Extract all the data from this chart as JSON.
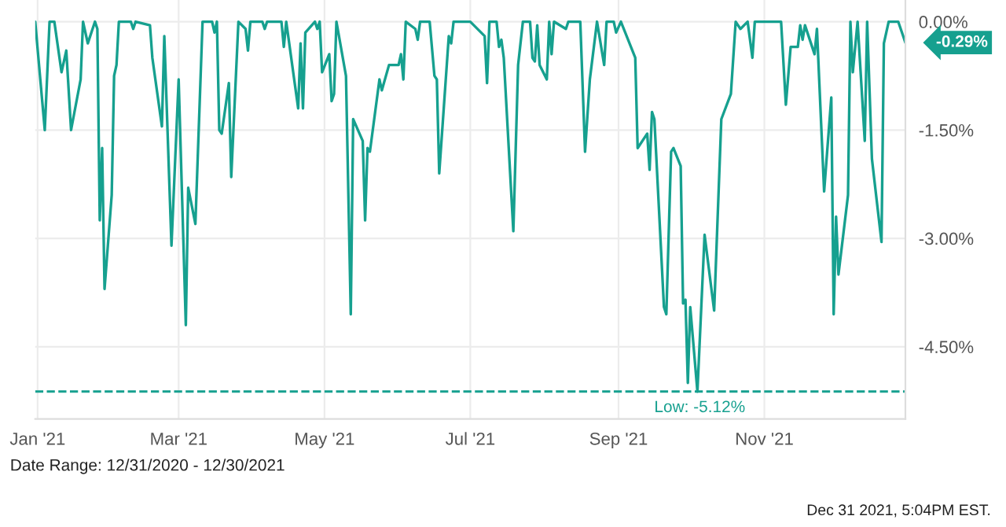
{
  "chart_data": {
    "type": "line",
    "x": [
      "2020-12-31",
      "2021-01-04",
      "2021-01-06",
      "2021-01-08",
      "2021-01-11",
      "2021-01-13",
      "2021-01-15",
      "2021-01-19",
      "2021-01-20",
      "2021-01-22",
      "2021-01-25",
      "2021-01-26",
      "2021-01-27",
      "2021-01-28",
      "2021-01-29",
      "2021-02-01",
      "2021-02-02",
      "2021-02-03",
      "2021-02-04",
      "2021-02-09",
      "2021-02-10",
      "2021-02-11",
      "2021-02-17",
      "2021-02-18",
      "2021-02-22",
      "2021-02-23",
      "2021-02-26",
      "2021-03-01",
      "2021-03-04",
      "2021-03-05",
      "2021-03-08",
      "2021-03-11",
      "2021-03-15",
      "2021-03-16",
      "2021-03-17",
      "2021-03-18",
      "2021-03-19",
      "2021-03-22",
      "2021-03-23",
      "2021-03-26",
      "2021-03-29",
      "2021-03-30",
      "2021-03-31",
      "2021-04-05",
      "2021-04-06",
      "2021-04-07",
      "2021-04-13",
      "2021-04-14",
      "2021-04-15",
      "2021-04-20",
      "2021-04-21",
      "2021-04-22",
      "2021-04-23",
      "2021-04-27",
      "2021-04-28",
      "2021-04-29",
      "2021-04-30",
      "2021-05-03",
      "2021-05-04",
      "2021-05-05",
      "2021-05-06",
      "2021-05-10",
      "2021-05-12",
      "2021-05-13",
      "2021-05-17",
      "2021-05-18",
      "2021-05-19",
      "2021-05-20",
      "2021-05-24",
      "2021-05-25",
      "2021-05-28",
      "2021-06-01",
      "2021-06-02",
      "2021-06-03",
      "2021-06-04",
      "2021-06-08",
      "2021-06-09",
      "2021-06-10",
      "2021-06-14",
      "2021-06-16",
      "2021-06-17",
      "2021-06-18",
      "2021-06-22",
      "2021-06-23",
      "2021-06-24",
      "2021-07-01",
      "2021-07-07",
      "2021-07-08",
      "2021-07-09",
      "2021-07-12",
      "2021-07-13",
      "2021-07-14",
      "2021-07-15",
      "2021-07-19",
      "2021-07-21",
      "2021-07-23",
      "2021-07-26",
      "2021-07-27",
      "2021-07-28",
      "2021-07-29",
      "2021-07-30",
      "2021-08-02",
      "2021-08-03",
      "2021-08-04",
      "2021-08-05",
      "2021-08-10",
      "2021-08-11",
      "2021-08-16",
      "2021-08-18",
      "2021-08-20",
      "2021-08-23",
      "2021-08-26",
      "2021-08-27",
      "2021-08-30",
      "2021-08-31",
      "2021-09-02",
      "2021-09-08",
      "2021-09-09",
      "2021-09-13",
      "2021-09-14",
      "2021-09-15",
      "2021-09-16",
      "2021-09-20",
      "2021-09-21",
      "2021-09-23",
      "2021-09-24",
      "2021-09-27",
      "2021-09-28",
      "2021-09-29",
      "2021-09-30",
      "2021-10-01",
      "2021-10-04",
      "2021-10-07",
      "2021-10-11",
      "2021-10-14",
      "2021-10-18",
      "2021-10-20",
      "2021-10-22",
      "2021-10-25",
      "2021-10-27",
      "2021-10-28",
      "2021-11-08",
      "2021-11-10",
      "2021-11-12",
      "2021-11-15",
      "2021-11-16",
      "2021-11-17",
      "2021-11-18",
      "2021-11-22",
      "2021-11-23",
      "2021-11-26",
      "2021-11-29",
      "2021-11-30",
      "2021-12-01",
      "2021-12-02",
      "2021-12-06",
      "2021-12-07",
      "2021-12-08",
      "2021-12-10",
      "2021-12-13",
      "2021-12-14",
      "2021-12-16",
      "2021-12-20",
      "2021-12-21",
      "2021-12-23",
      "2021-12-27",
      "2021-12-30"
    ],
    "series": [
      {
        "color": "#16a08f",
        "values": [
          0,
          -1.5,
          0,
          0,
          -0.7,
          -0.4,
          -1.5,
          -0.8,
          0,
          -0.3,
          0,
          -0.1,
          -2.75,
          -1.75,
          -3.7,
          -2.4,
          -0.75,
          -0.6,
          0,
          0,
          -0.1,
          0,
          -0.05,
          -0.5,
          -1.45,
          -0.2,
          -3.1,
          -0.8,
          -4.2,
          -2.3,
          -2.8,
          0,
          0,
          -0.15,
          0,
          -1.5,
          -1.55,
          -0.85,
          -2.15,
          0,
          -0.1,
          -0.4,
          0,
          0,
          -0.1,
          0,
          0,
          -0.35,
          0,
          -1.2,
          -0.3,
          -1.2,
          -0.15,
          0,
          -0.1,
          0,
          -0.7,
          -0.45,
          -1.1,
          -1.0,
          0,
          -0.75,
          -4.05,
          -1.35,
          -1.65,
          -2.75,
          -1.75,
          -1.8,
          -0.8,
          -0.95,
          -0.6,
          -0.6,
          -0.45,
          -0.8,
          0,
          -0.1,
          -0.25,
          0,
          0,
          -0.75,
          -0.8,
          -2.1,
          -0.2,
          -0.3,
          0,
          0,
          -0.2,
          -0.85,
          0,
          0,
          -0.35,
          -0.25,
          -0.5,
          -2.9,
          -0.6,
          0,
          0,
          -0.5,
          -0.55,
          -0.05,
          -0.6,
          -0.8,
          0,
          -0.45,
          0,
          -0.1,
          0,
          0,
          -1.8,
          -0.8,
          0,
          -0.6,
          0,
          0,
          -0.15,
          0,
          -0.5,
          -1.75,
          -1.55,
          -2.05,
          -1.25,
          -1.35,
          -3.95,
          -4.05,
          -1.8,
          -1.75,
          -2.0,
          -3.9,
          -3.85,
          -5.0,
          -3.95,
          -5.12,
          -2.95,
          -4.0,
          -1.35,
          -1.0,
          0,
          -0.1,
          0,
          -0.5,
          0,
          0,
          -1.15,
          -0.35,
          -0.35,
          -0.05,
          -0.25,
          -0.05,
          -0.45,
          -0.1,
          -2.35,
          -1.05,
          -4.05,
          -2.7,
          -3.5,
          -2.4,
          0,
          -0.7,
          0,
          -1.65,
          0,
          -1.9,
          -3.05,
          -0.3,
          0,
          0,
          -0.29
        ]
      }
    ],
    "xlim": [
      "2020-12-31",
      "2021-12-30"
    ],
    "xticks": [
      {
        "value": "2021-01-01",
        "label": "Jan '21"
      },
      {
        "value": "2021-03-01",
        "label": "Mar '21"
      },
      {
        "value": "2021-05-01",
        "label": "May '21"
      },
      {
        "value": "2021-07-01",
        "label": "Jul '21"
      },
      {
        "value": "2021-09-01",
        "label": "Sep '21"
      },
      {
        "value": "2021-11-01",
        "label": "Nov '21"
      }
    ],
    "ylim": [
      -5.5,
      0.3
    ],
    "yticks": [
      {
        "value": 0,
        "label": "0.00%"
      },
      {
        "value": -1.5,
        "label": "-1.50%"
      },
      {
        "value": -3,
        "label": "-3.00%"
      },
      {
        "value": -4.5,
        "label": "-4.50%"
      }
    ],
    "ref_lines": [
      {
        "axis": "y",
        "value": -5.12,
        "label": "Low: -5.12%",
        "color": "#16a08f",
        "line_style": "dashed"
      }
    ],
    "annotations": [
      {
        "text": "-0.29%",
        "x": "2021-12-30",
        "y": -0.29
      },
      "Date Range: 12/31/2020 - 12/30/2021",
      "Dec 31 2021, 5:04PM EST."
    ],
    "grid": true,
    "legend": false,
    "marker": "none",
    "line_style": "solid"
  }
}
